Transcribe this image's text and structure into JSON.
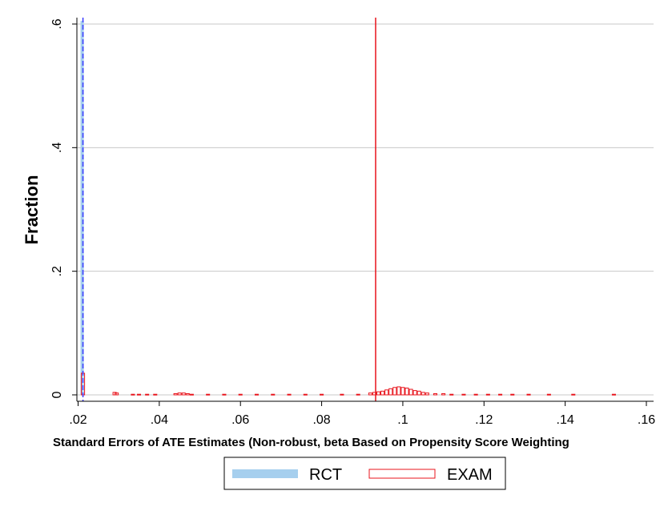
{
  "chart_data": {
    "type": "histogram",
    "title": "",
    "xlabel": "Standard Errors of ATE Estimates (Non-robust, beta Based on Propensity Score Weighting",
    "ylabel": "Fraction",
    "xlim": [
      0.02,
      0.16
    ],
    "ylim": [
      0,
      0.6
    ],
    "x_ticks": [
      ".02",
      ".04",
      ".06",
      ".08",
      ".1",
      ".12",
      ".14",
      ".16"
    ],
    "x_tick_values": [
      0.02,
      0.04,
      0.06,
      0.08,
      0.1,
      0.12,
      0.14,
      0.16
    ],
    "y_ticks": [
      "0",
      ".2",
      ".4",
      ".6"
    ],
    "y_tick_values": [
      0,
      0.2,
      0.4,
      0.6
    ],
    "grid": "horizontal",
    "legend_position": "bottom",
    "series": [
      {
        "name": "RCT",
        "style": "filled-histogram",
        "color": "#a6cfee",
        "bins": [
          [
            0.021,
            0.605
          ]
        ],
        "reference_line": {
          "x": 0.0212,
          "color": "#3b3bff",
          "dash": "dashed"
        }
      },
      {
        "name": "EXAM",
        "style": "outline-histogram",
        "color": "#e8141c",
        "bins": [
          [
            0.0212,
            0.035
          ],
          [
            0.029,
            0.004
          ],
          [
            0.0295,
            0.003
          ],
          [
            0.0335,
            0.001
          ],
          [
            0.035,
            0.001
          ],
          [
            0.037,
            0.001
          ],
          [
            0.039,
            0.001
          ],
          [
            0.044,
            0.002
          ],
          [
            0.045,
            0.003
          ],
          [
            0.046,
            0.003
          ],
          [
            0.047,
            0.002
          ],
          [
            0.048,
            0.001
          ],
          [
            0.052,
            0.001
          ],
          [
            0.056,
            0.001
          ],
          [
            0.06,
            0.001
          ],
          [
            0.064,
            0.001
          ],
          [
            0.068,
            0.001
          ],
          [
            0.072,
            0.001
          ],
          [
            0.076,
            0.001
          ],
          [
            0.08,
            0.001
          ],
          [
            0.085,
            0.001
          ],
          [
            0.089,
            0.001
          ],
          [
            0.092,
            0.003
          ],
          [
            0.093,
            0.004
          ],
          [
            0.094,
            0.005
          ],
          [
            0.095,
            0.006
          ],
          [
            0.096,
            0.008
          ],
          [
            0.097,
            0.01
          ],
          [
            0.098,
            0.012
          ],
          [
            0.099,
            0.013
          ],
          [
            0.1,
            0.012
          ],
          [
            0.101,
            0.011
          ],
          [
            0.102,
            0.009
          ],
          [
            0.103,
            0.007
          ],
          [
            0.104,
            0.006
          ],
          [
            0.105,
            0.004
          ],
          [
            0.106,
            0.003
          ],
          [
            0.108,
            0.002
          ],
          [
            0.11,
            0.002
          ],
          [
            0.112,
            0.001
          ],
          [
            0.115,
            0.001
          ],
          [
            0.118,
            0.001
          ],
          [
            0.121,
            0.001
          ],
          [
            0.124,
            0.001
          ],
          [
            0.127,
            0.001
          ],
          [
            0.131,
            0.001
          ],
          [
            0.136,
            0.001
          ],
          [
            0.142,
            0.001
          ],
          [
            0.152,
            0.001
          ]
        ],
        "reference_line": {
          "x": 0.0933,
          "color": "#e8141c",
          "dash": "solid"
        }
      }
    ]
  }
}
